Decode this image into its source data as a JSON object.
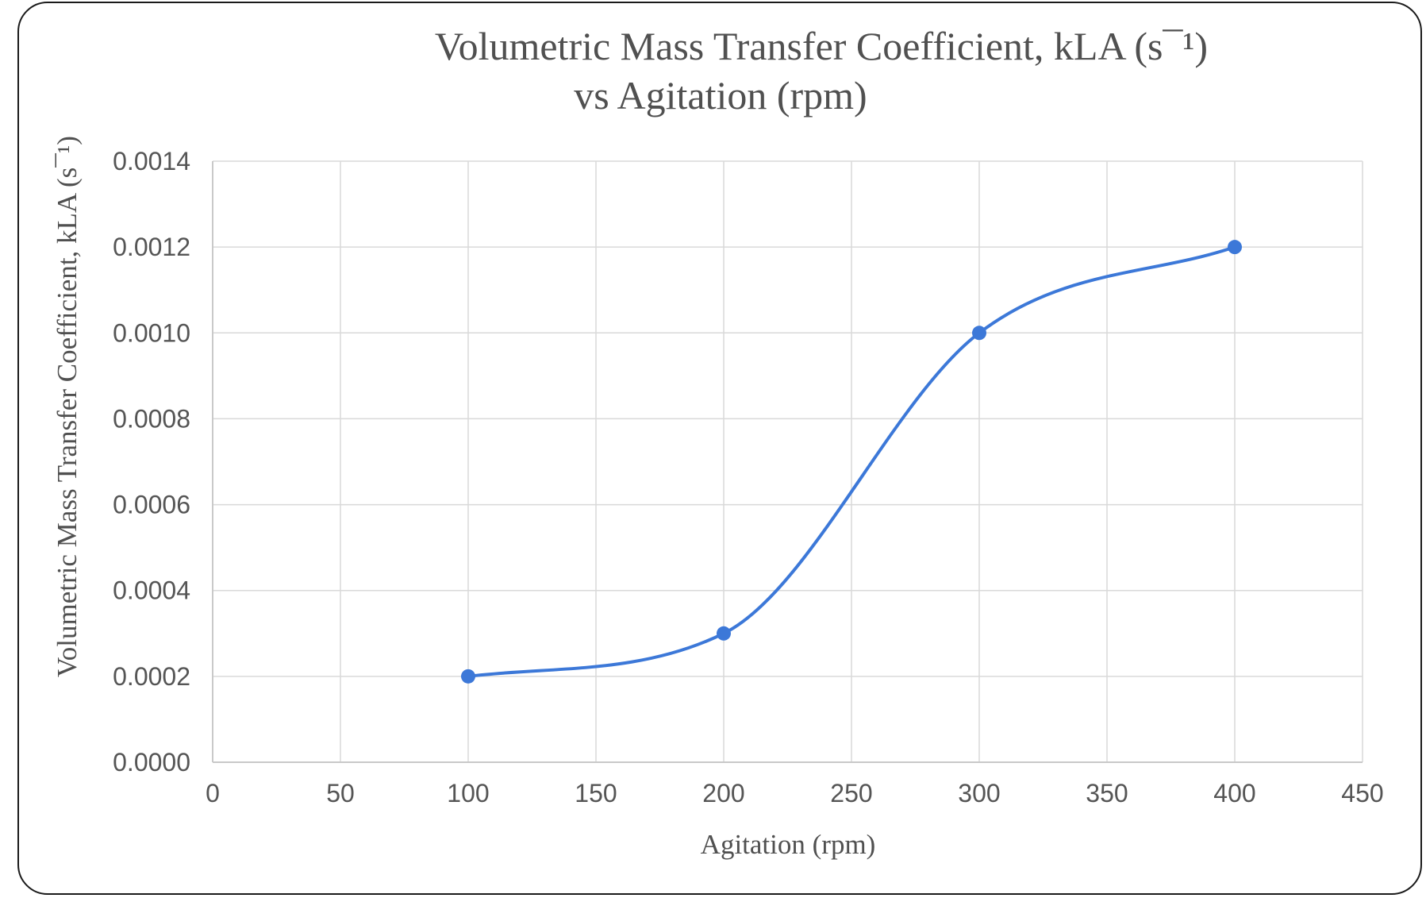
{
  "chart_data": {
    "type": "line",
    "title_line1": "Volumetric  Mass Transfer  Coefficient, kLA (s¯¹)",
    "title_line2": "vs Agitation  (rpm)",
    "xlabel": "Agitation (rpm)",
    "ylabel": "Volumetric  Mass Transfer Coefficient,  kLA (s¯¹)",
    "xlim": [
      0,
      450
    ],
    "ylim": [
      0,
      0.0014
    ],
    "x_ticks": [
      "0",
      "50",
      "100",
      "150",
      "200",
      "250",
      "300",
      "350",
      "400",
      "450"
    ],
    "y_ticks": [
      "0.0000",
      "0.0002",
      "0.0004",
      "0.0006",
      "0.0008",
      "0.0010",
      "0.0012",
      "0.0014"
    ],
    "grid": true,
    "smooth": true,
    "series": [
      {
        "color": "#3c78d8",
        "x": [
          100,
          200,
          300,
          400
        ],
        "y": [
          0.0002,
          0.0003,
          0.001,
          0.0012
        ]
      }
    ]
  }
}
